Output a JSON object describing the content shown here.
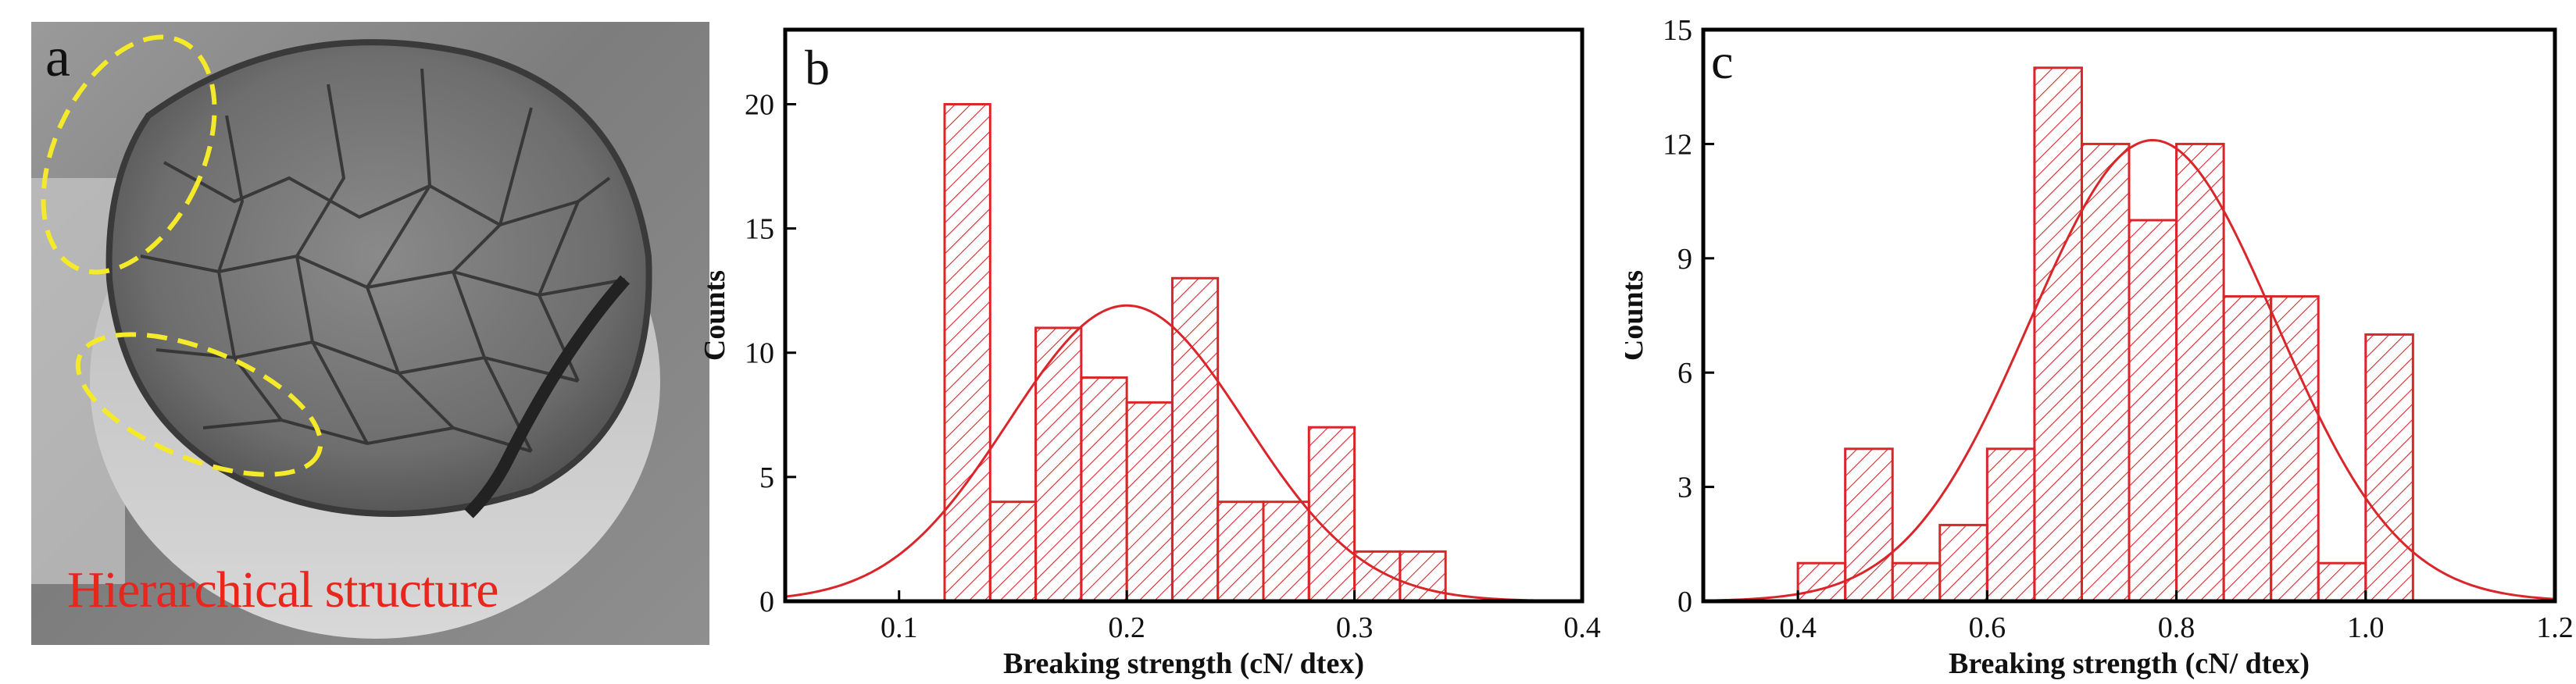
{
  "panel_a": {
    "letter": "a",
    "label": "Hierarchical structure",
    "annotation_color": "#f5ea2a",
    "label_color": "#e8261e"
  },
  "chart_data": [
    {
      "panel": "b",
      "type": "bar",
      "bar_style": "histogram-hatched",
      "color": "#d9262a",
      "title": "",
      "xlabel": "Breaking strength (cN/ dtex)",
      "ylabel": "Counts",
      "xlim": [
        0.05,
        0.4
      ],
      "ylim": [
        0,
        23
      ],
      "xticks": [
        0.1,
        0.2,
        0.3,
        0.4
      ],
      "yticks": [
        0,
        5,
        10,
        15,
        20
      ],
      "bin_width": 0.02,
      "bins": [
        {
          "start": 0.12,
          "count": 20
        },
        {
          "start": 0.14,
          "count": 4
        },
        {
          "start": 0.16,
          "count": 11
        },
        {
          "start": 0.18,
          "count": 9
        },
        {
          "start": 0.2,
          "count": 8
        },
        {
          "start": 0.22,
          "count": 13
        },
        {
          "start": 0.24,
          "count": 4
        },
        {
          "start": 0.26,
          "count": 4
        },
        {
          "start": 0.28,
          "count": 7
        },
        {
          "start": 0.3,
          "count": 2
        },
        {
          "start": 0.32,
          "count": 2
        }
      ],
      "fit": {
        "type": "gaussian",
        "mean": 0.2,
        "sigma": 0.052,
        "peak": 11.9
      },
      "grid": false
    },
    {
      "panel": "c",
      "type": "bar",
      "bar_style": "histogram-hatched",
      "color": "#d9262a",
      "title": "",
      "xlabel": "Breaking strength (cN/ dtex)",
      "ylabel": "Counts",
      "xlim": [
        0.3,
        1.2
      ],
      "ylim": [
        0,
        15
      ],
      "xticks": [
        0.4,
        0.6,
        0.8,
        1.0,
        1.2
      ],
      "yticks": [
        0,
        3,
        6,
        9,
        12,
        15
      ],
      "bin_width": 0.05,
      "bins": [
        {
          "start": 0.4,
          "count": 1
        },
        {
          "start": 0.45,
          "count": 4
        },
        {
          "start": 0.5,
          "count": 1
        },
        {
          "start": 0.55,
          "count": 2
        },
        {
          "start": 0.6,
          "count": 4
        },
        {
          "start": 0.65,
          "count": 14
        },
        {
          "start": 0.7,
          "count": 12
        },
        {
          "start": 0.75,
          "count": 10
        },
        {
          "start": 0.8,
          "count": 12
        },
        {
          "start": 0.85,
          "count": 8
        },
        {
          "start": 0.9,
          "count": 8
        },
        {
          "start": 0.95,
          "count": 1
        },
        {
          "start": 1.0,
          "count": 7
        }
      ],
      "fit": {
        "type": "gaussian",
        "mean": 0.775,
        "sigma": 0.13,
        "peak": 12.1
      },
      "grid": false
    }
  ]
}
